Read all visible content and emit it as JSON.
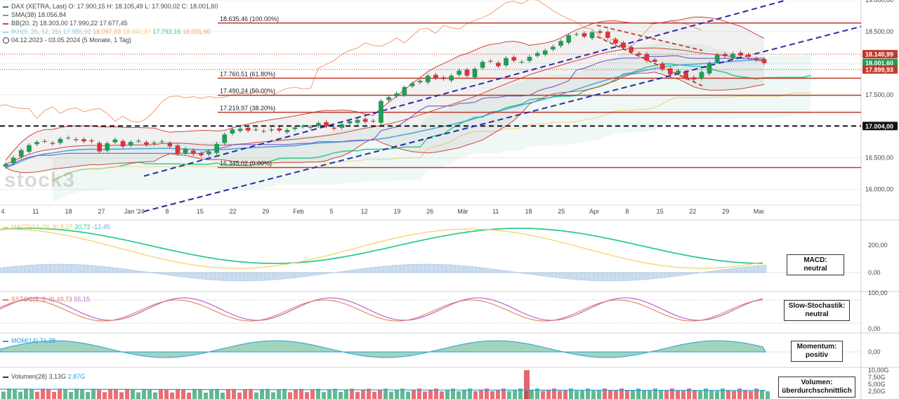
{
  "header": {
    "title": "DAX (XETRA, Last)",
    "ohlc": "O: 17.900,15  H: 18.105,49  L: 17.900,02  C: 18.001,60",
    "sma": "SMA(38)",
    "sma_value": "18.056,84",
    "bb": "BB(20, 2)",
    "bb_values": "18.303,00  17.990,22  17.677,45",
    "ikh": "IKH(9, 26, 52, 26)",
    "ikh_values": [
      "17.986,92",
      "18.097,03",
      "18.041,37",
      "17.793,16",
      "18.001,60"
    ],
    "range": "04.12.2023 - 03.05.2024  (5 Monate, 1 Tag)",
    "watermark": "stock3"
  },
  "colors": {
    "up": "#1f9d55",
    "down": "#e0303a",
    "sma": "#4aa3df",
    "bb": "#d0453f",
    "tenkan": "#f0a070",
    "kijun": "#8064c8",
    "chikou": "#f5e070",
    "spanA": "#2ecc8f",
    "spanB": "#f0d890",
    "fib": "#c0392b",
    "channel": "#2a2aa8",
    "support": "#111111"
  },
  "chart_data": [
    {
      "type": "candlestick",
      "ylim": [
        15750,
        19000
      ],
      "yticks": [
        "16.000,00",
        "16.500,00",
        "17.000,00",
        "17.500,00",
        "18.000,00",
        "18.500,00",
        "19.000,00"
      ],
      "xticks": [
        "4",
        "11",
        "18",
        "27",
        "Jan '24",
        "8",
        "15",
        "22",
        "29",
        "Feb",
        "5",
        "12",
        "19",
        "26",
        "Mär",
        "11",
        "18",
        "25",
        "Apr",
        "8",
        "15",
        "22",
        "29",
        "Mai"
      ],
      "closes": [
        16400,
        16500,
        16620,
        16700,
        16750,
        16760,
        16720,
        16800,
        16820,
        16780,
        16760,
        16760,
        16600,
        16730,
        16790,
        16680,
        16750,
        16770,
        16710,
        16740,
        16760,
        16680,
        16560,
        16640,
        16560,
        16540,
        16600,
        16720,
        16870,
        16950,
        16960,
        16930,
        16950,
        16920,
        16950,
        16930,
        16940,
        16980,
        17000,
        16990,
        17050,
        17000,
        16960,
        17030,
        17080,
        17100,
        17070,
        17080,
        17400,
        17460,
        17520,
        17620,
        17680,
        17720,
        17800,
        17760,
        17750,
        17800,
        17880,
        17800,
        17910,
        18020,
        18030,
        17950,
        18080,
        18040,
        18020,
        18100,
        18160,
        18200,
        18260,
        18350,
        18440,
        18460,
        18420,
        18490,
        18480,
        18400,
        18310,
        18240,
        18180,
        18130,
        18040,
        18020,
        17900,
        17820,
        17880,
        17760,
        17740,
        17860,
        18000,
        18130,
        18110,
        18150,
        18120,
        18100,
        18050,
        18000
      ],
      "fib_levels": [
        {
          "label": "18.635,46 (100.00%)",
          "value": 18635.46
        },
        {
          "label": "17.760,51 (61.80%)",
          "value": 17760.51
        },
        {
          "label": "17.490,24 (50.00%)",
          "value": 17490.24
        },
        {
          "label": "17.219,97 (38.20%)",
          "value": 17219.97
        },
        {
          "label": "16.345,02 (0.00%)",
          "value": 16345.02
        }
      ],
      "support": {
        "label": "17.004,00",
        "value": 17004
      },
      "dotted_levels": [
        {
          "label": "18.140,99",
          "value": 18140.99
        },
        {
          "label": "17.899,93",
          "value": 17899.93
        }
      ],
      "last_price": {
        "label": "18.001,60",
        "value": 18001.6
      }
    }
  ],
  "panels": {
    "macd": {
      "legend": "MACD(12, 26, 9)",
      "values": [
        "8,27",
        "20,72",
        "-12,45"
      ],
      "ticks": [
        "200,00",
        "0,00"
      ],
      "box": "MACD:\nneutral"
    },
    "sstoc": {
      "legend": "SSTOC(5, 5, 3)",
      "values": [
        "49,73",
        "55,15"
      ],
      "ticks": [
        "100,00",
        "0,00"
      ],
      "box": "Slow-Stochastik:\nneutral"
    },
    "mom": {
      "legend": "MOM(14)",
      "values": [
        "71,28"
      ],
      "ticks": [
        "0,00"
      ],
      "box": "Momentum:\npositiv"
    },
    "vol": {
      "legend": "Volumen(28)",
      "values": [
        "3,13G",
        "2,87G"
      ],
      "ticks": [
        "10,00G",
        "7,50G",
        "5,00G",
        "2,50G"
      ],
      "box": "Volumen:\nüberdurchschnittlich"
    }
  }
}
